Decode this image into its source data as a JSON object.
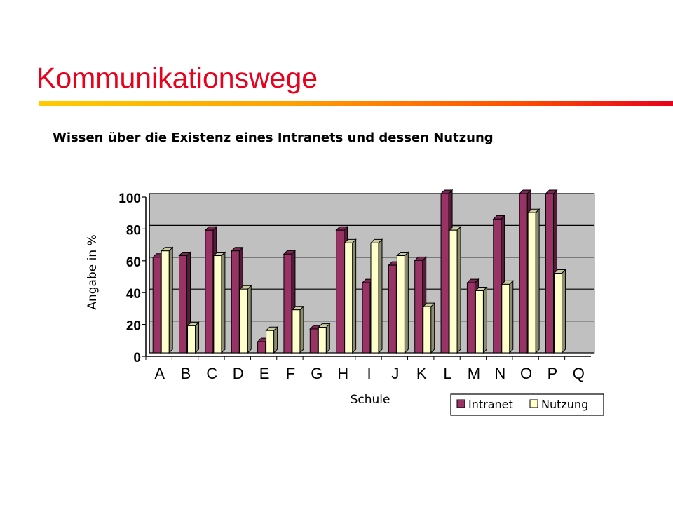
{
  "slide": {
    "title": "Kommunikationswege"
  },
  "chart_data": {
    "type": "bar",
    "title": "Wissen über die Existenz eines Intranets und dessen Nutzung",
    "xlabel": "Schule",
    "ylabel": "Angabe in %",
    "ylim": [
      0,
      100
    ],
    "yticks": [
      0,
      20,
      40,
      60,
      80,
      100
    ],
    "grid": true,
    "legend_position": "bottom-right",
    "categories": [
      "A",
      "B",
      "C",
      "D",
      "E",
      "F",
      "G",
      "H",
      "I",
      "J",
      "K",
      "L",
      "M",
      "N",
      "O",
      "P",
      "Q"
    ],
    "series": [
      {
        "name": "Intranet",
        "color": "#993366",
        "values": [
          60,
          61,
          77,
          64,
          7,
          62,
          15,
          77,
          44,
          55,
          58,
          100,
          44,
          84,
          100,
          100,
          0
        ]
      },
      {
        "name": "Nutzung",
        "color": "#ffffcc",
        "values": [
          64,
          17,
          61,
          40,
          14,
          27,
          16,
          69,
          69,
          61,
          29,
          77,
          39,
          43,
          88,
          50,
          0
        ]
      }
    ]
  }
}
